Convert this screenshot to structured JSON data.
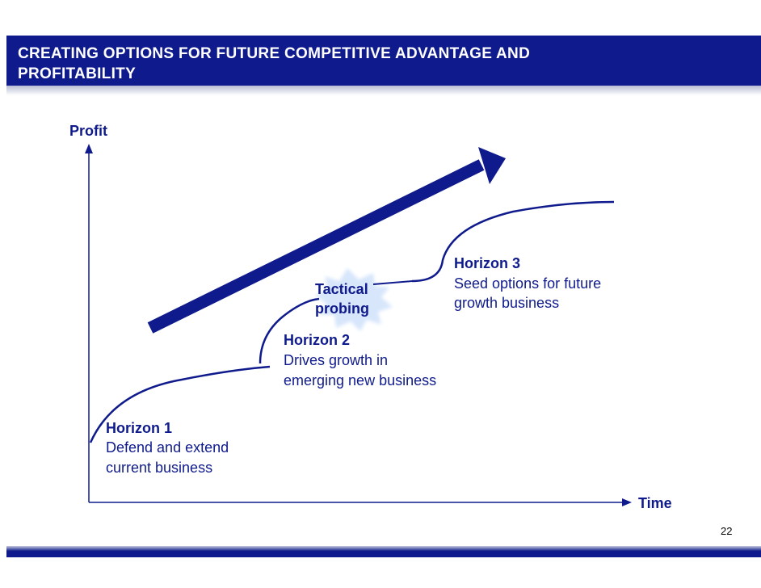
{
  "slide": {
    "title_line1": "CREATING OPTIONS FOR FUTURE COMPETITIVE ADVANTAGE AND",
    "title_line2": "PROFITABILITY",
    "page_number": "22"
  },
  "diagram": {
    "y_axis_label": "Profit",
    "x_axis_label": "Time",
    "horizons": [
      {
        "title": "Horizon 1",
        "line1": "Defend and extend",
        "line2": "current business"
      },
      {
        "title": "Horizon 2",
        "line1": "Drives growth in",
        "line2": "emerging new business"
      },
      {
        "title": "Horizon 3",
        "line1": "Seed options for future",
        "line2": "growth business"
      }
    ],
    "burst": {
      "line1": "Tactical",
      "line2": "probing"
    }
  },
  "colors": {
    "primary": "#0f1b8c",
    "burst": "#d7e6fb"
  }
}
